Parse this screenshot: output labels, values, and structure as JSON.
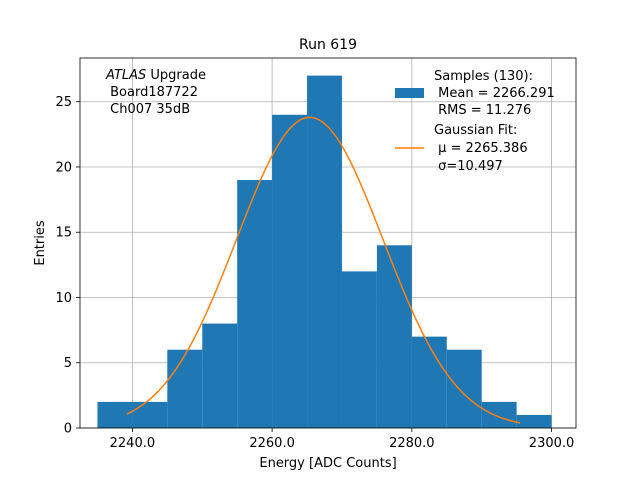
{
  "chart_data": {
    "type": "histogram",
    "title": "Run 619",
    "xlabel": "Energy [ADC Counts]",
    "ylabel": "Entries",
    "xlim": [
      2232.5,
      2303.5
    ],
    "ylim": [
      0,
      28.35
    ],
    "grid": true,
    "x_ticks": [
      2240,
      2260,
      2280,
      2300
    ],
    "x_tick_labels": [
      "2240.0",
      "2260.0",
      "2280.0",
      "2300.0"
    ],
    "y_ticks": [
      0,
      5,
      10,
      15,
      20,
      25
    ],
    "y_tick_labels": [
      "0",
      "5",
      "10",
      "15",
      "20",
      "25"
    ],
    "bins": [
      {
        "x0": 2235,
        "x1": 2240,
        "count": 2
      },
      {
        "x0": 2240,
        "x1": 2245,
        "count": 2
      },
      {
        "x0": 2245,
        "x1": 2250,
        "count": 6
      },
      {
        "x0": 2250,
        "x1": 2255,
        "count": 8
      },
      {
        "x0": 2255,
        "x1": 2260,
        "count": 19
      },
      {
        "x0": 2260,
        "x1": 2265,
        "count": 24
      },
      {
        "x0": 2265,
        "x1": 2270,
        "count": 27
      },
      {
        "x0": 2270,
        "x1": 2275,
        "count": 12
      },
      {
        "x0": 2275,
        "x1": 2280,
        "count": 14
      },
      {
        "x0": 2280,
        "x1": 2285,
        "count": 7
      },
      {
        "x0": 2285,
        "x1": 2290,
        "count": 6
      },
      {
        "x0": 2290,
        "x1": 2295,
        "count": 2
      },
      {
        "x0": 2295,
        "x1": 2300,
        "count": 1
      }
    ],
    "fit": {
      "type": "gaussian",
      "mu": 2265.386,
      "sigma": 10.497,
      "amplitude": 23.8,
      "x_range": [
        2239.2,
        2295.5
      ]
    },
    "annotation": {
      "italic_part": "ATLAS",
      "lines": [
        " Upgrade",
        " Board187722",
        " Ch007 35dB"
      ]
    },
    "legend": {
      "placement": "top-right",
      "samples_lines": [
        "Samples (130):",
        " Mean = 2266.291",
        " RMS = 11.276"
      ],
      "fit_lines": [
        "Gaussian Fit:",
        " μ = 2265.386",
        " σ=10.497"
      ]
    },
    "colors": {
      "bars": "#1f77b4",
      "fit_line": "#ff7f0e",
      "grid": "#b0b0b0",
      "axes": "#000000"
    }
  }
}
